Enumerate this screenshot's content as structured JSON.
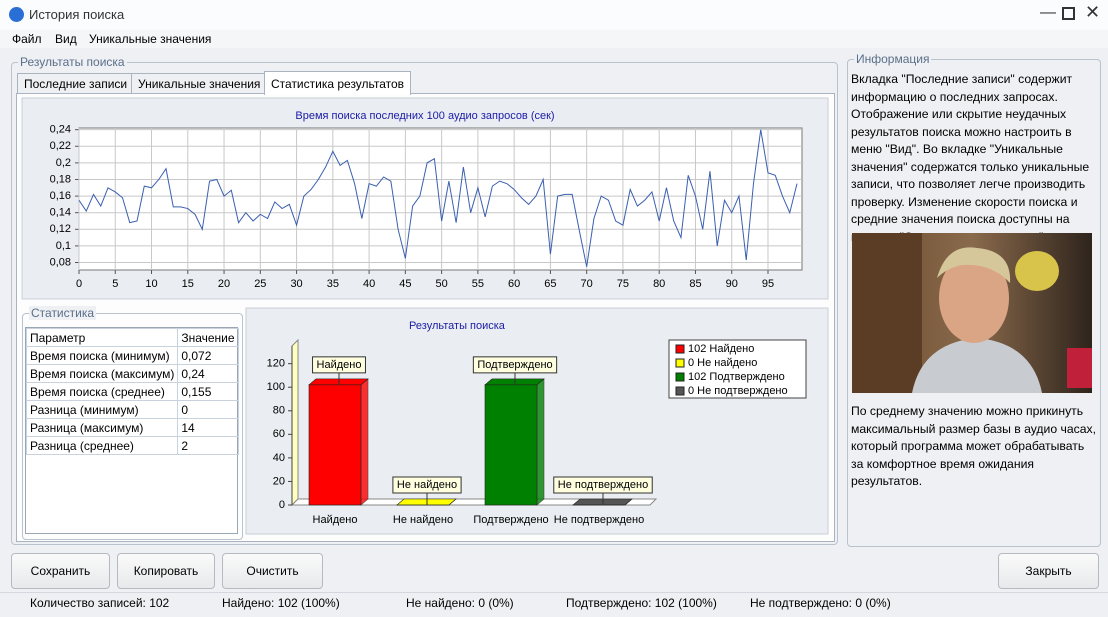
{
  "window": {
    "title": "История поиска"
  },
  "menu": [
    "Файл",
    "Вид",
    "Уникальные значения"
  ],
  "results_group": {
    "title": "Результаты поиска",
    "tabs": [
      "Последние записи",
      "Уникальные значения",
      "Статистика результатов"
    ]
  },
  "chart_data": [
    {
      "type": "line",
      "title": "Время поиска последних 100 аудио запросов (сек)",
      "color": "#3a5fb0",
      "grid": true,
      "x": [
        0,
        1,
        2,
        3,
        4,
        5,
        6,
        7,
        8,
        9,
        10,
        11,
        12,
        13,
        14,
        15,
        16,
        17,
        18,
        19,
        20,
        21,
        22,
        23,
        24,
        25,
        26,
        27,
        28,
        29,
        30,
        31,
        32,
        33,
        34,
        35,
        36,
        37,
        38,
        39,
        40,
        41,
        42,
        43,
        44,
        45,
        46,
        47,
        48,
        49,
        50,
        51,
        52,
        53,
        54,
        55,
        56,
        57,
        58,
        59,
        60,
        61,
        62,
        63,
        64,
        65,
        66,
        67,
        68,
        69,
        70,
        71,
        72,
        73,
        74,
        75,
        76,
        77,
        78,
        79,
        80,
        81,
        82,
        83,
        84,
        85,
        86,
        87,
        88,
        89,
        90,
        91,
        92,
        93,
        94,
        95,
        96,
        97,
        98,
        99
      ],
      "values": [
        0.155,
        0.142,
        0.162,
        0.148,
        0.17,
        0.165,
        0.158,
        0.128,
        0.13,
        0.172,
        0.17,
        0.18,
        0.193,
        0.147,
        0.147,
        0.145,
        0.138,
        0.12,
        0.178,
        0.18,
        0.16,
        0.167,
        0.128,
        0.14,
        0.13,
        0.138,
        0.133,
        0.153,
        0.145,
        0.15,
        0.125,
        0.16,
        0.168,
        0.18,
        0.195,
        0.214,
        0.197,
        0.203,
        0.175,
        0.133,
        0.175,
        0.172,
        0.183,
        0.178,
        0.12,
        0.085,
        0.148,
        0.16,
        0.2,
        0.205,
        0.13,
        0.178,
        0.128,
        0.195,
        0.14,
        0.17,
        0.135,
        0.172,
        0.178,
        0.175,
        0.168,
        0.158,
        0.15,
        0.16,
        0.18,
        0.09,
        0.16,
        0.162,
        0.162,
        0.118,
        0.075,
        0.133,
        0.16,
        0.155,
        0.13,
        0.125,
        0.168,
        0.148,
        0.155,
        0.165,
        0.13,
        0.17,
        0.13,
        0.11,
        0.185,
        0.16,
        0.12,
        0.19,
        0.1,
        0.155,
        0.14,
        0.16,
        0.083,
        0.175,
        0.24,
        0.188,
        0.185,
        0.16,
        0.14,
        0.175
      ],
      "xlim": [
        0,
        99
      ],
      "xticks": [
        0,
        5,
        10,
        15,
        20,
        25,
        30,
        35,
        40,
        45,
        50,
        55,
        60,
        65,
        70,
        75,
        80,
        85,
        90,
        95
      ],
      "ylim": [
        0.071,
        0.242
      ],
      "yticks": [
        {
          "value": 0.08,
          "label": "0,08"
        },
        {
          "value": 0.1,
          "label": "0,1"
        },
        {
          "value": 0.12,
          "label": "0,12"
        },
        {
          "value": 0.14,
          "label": "0,14"
        },
        {
          "value": 0.16,
          "label": "0,16"
        },
        {
          "value": 0.18,
          "label": "0,18"
        },
        {
          "value": 0.2,
          "label": "0,2"
        },
        {
          "value": 0.22,
          "label": "0,22"
        },
        {
          "value": 0.24,
          "label": "0,24"
        }
      ]
    },
    {
      "type": "bar",
      "title": "Результаты поиска",
      "categories": [
        "Найдено",
        "Не найдено",
        "Подтверждено",
        "Не подтверждено"
      ],
      "values": [
        102,
        0,
        102,
        0
      ],
      "colors": [
        "#ff0000",
        "#ffff00",
        "#008000",
        "#555555"
      ],
      "legend_labels": [
        "102 Найдено",
        "0 Не найдено",
        "102 Подтверждено",
        "0 Не подтверждено"
      ],
      "ylim": [
        0,
        135
      ],
      "yticks": [
        0,
        20,
        40,
        60,
        80,
        100,
        120
      ]
    }
  ],
  "stats": {
    "title": "Статистика",
    "header": [
      "Параметр",
      "Значение"
    ],
    "rows": [
      [
        "Время поиска (минимум)",
        "0,072"
      ],
      [
        "Время поиска (максимум)",
        "0,24"
      ],
      [
        "Время поиска (среднее)",
        "0,155"
      ],
      [
        "Разница (минимум)",
        "0"
      ],
      [
        "Разница (максимум)",
        "14"
      ],
      [
        "Разница (среднее)",
        "2"
      ]
    ]
  },
  "info": {
    "title": "Информация",
    "text1": "Вкладка \"Последние записи\" содержит информацию о последних запросах. Отображение или скрытие неудачных результатов поиска можно настроить в меню \"Вид\". Во вкладке \"Уникальные значения\" содержатся только уникальные записи, что позволяет легче производить проверку. Изменение скорости поиска и средние значения поиска доступны на вкладке \"Статистика результатов\".",
    "text2": "По среднему значению можно прикинуть максимальный размер базы в аудио часах, который программа может обрабатывать за комфортное время ожидания результатов."
  },
  "buttons": [
    "Сохранить",
    "Копировать",
    "Очистить",
    "Закрыть"
  ],
  "status": [
    "Количество записей: 102",
    "Найдено: 102 (100%)",
    "Не найдено: 0 (0%)",
    "Подтверждено: 102 (100%)",
    "Не подтверждено: 0 (0%)"
  ]
}
